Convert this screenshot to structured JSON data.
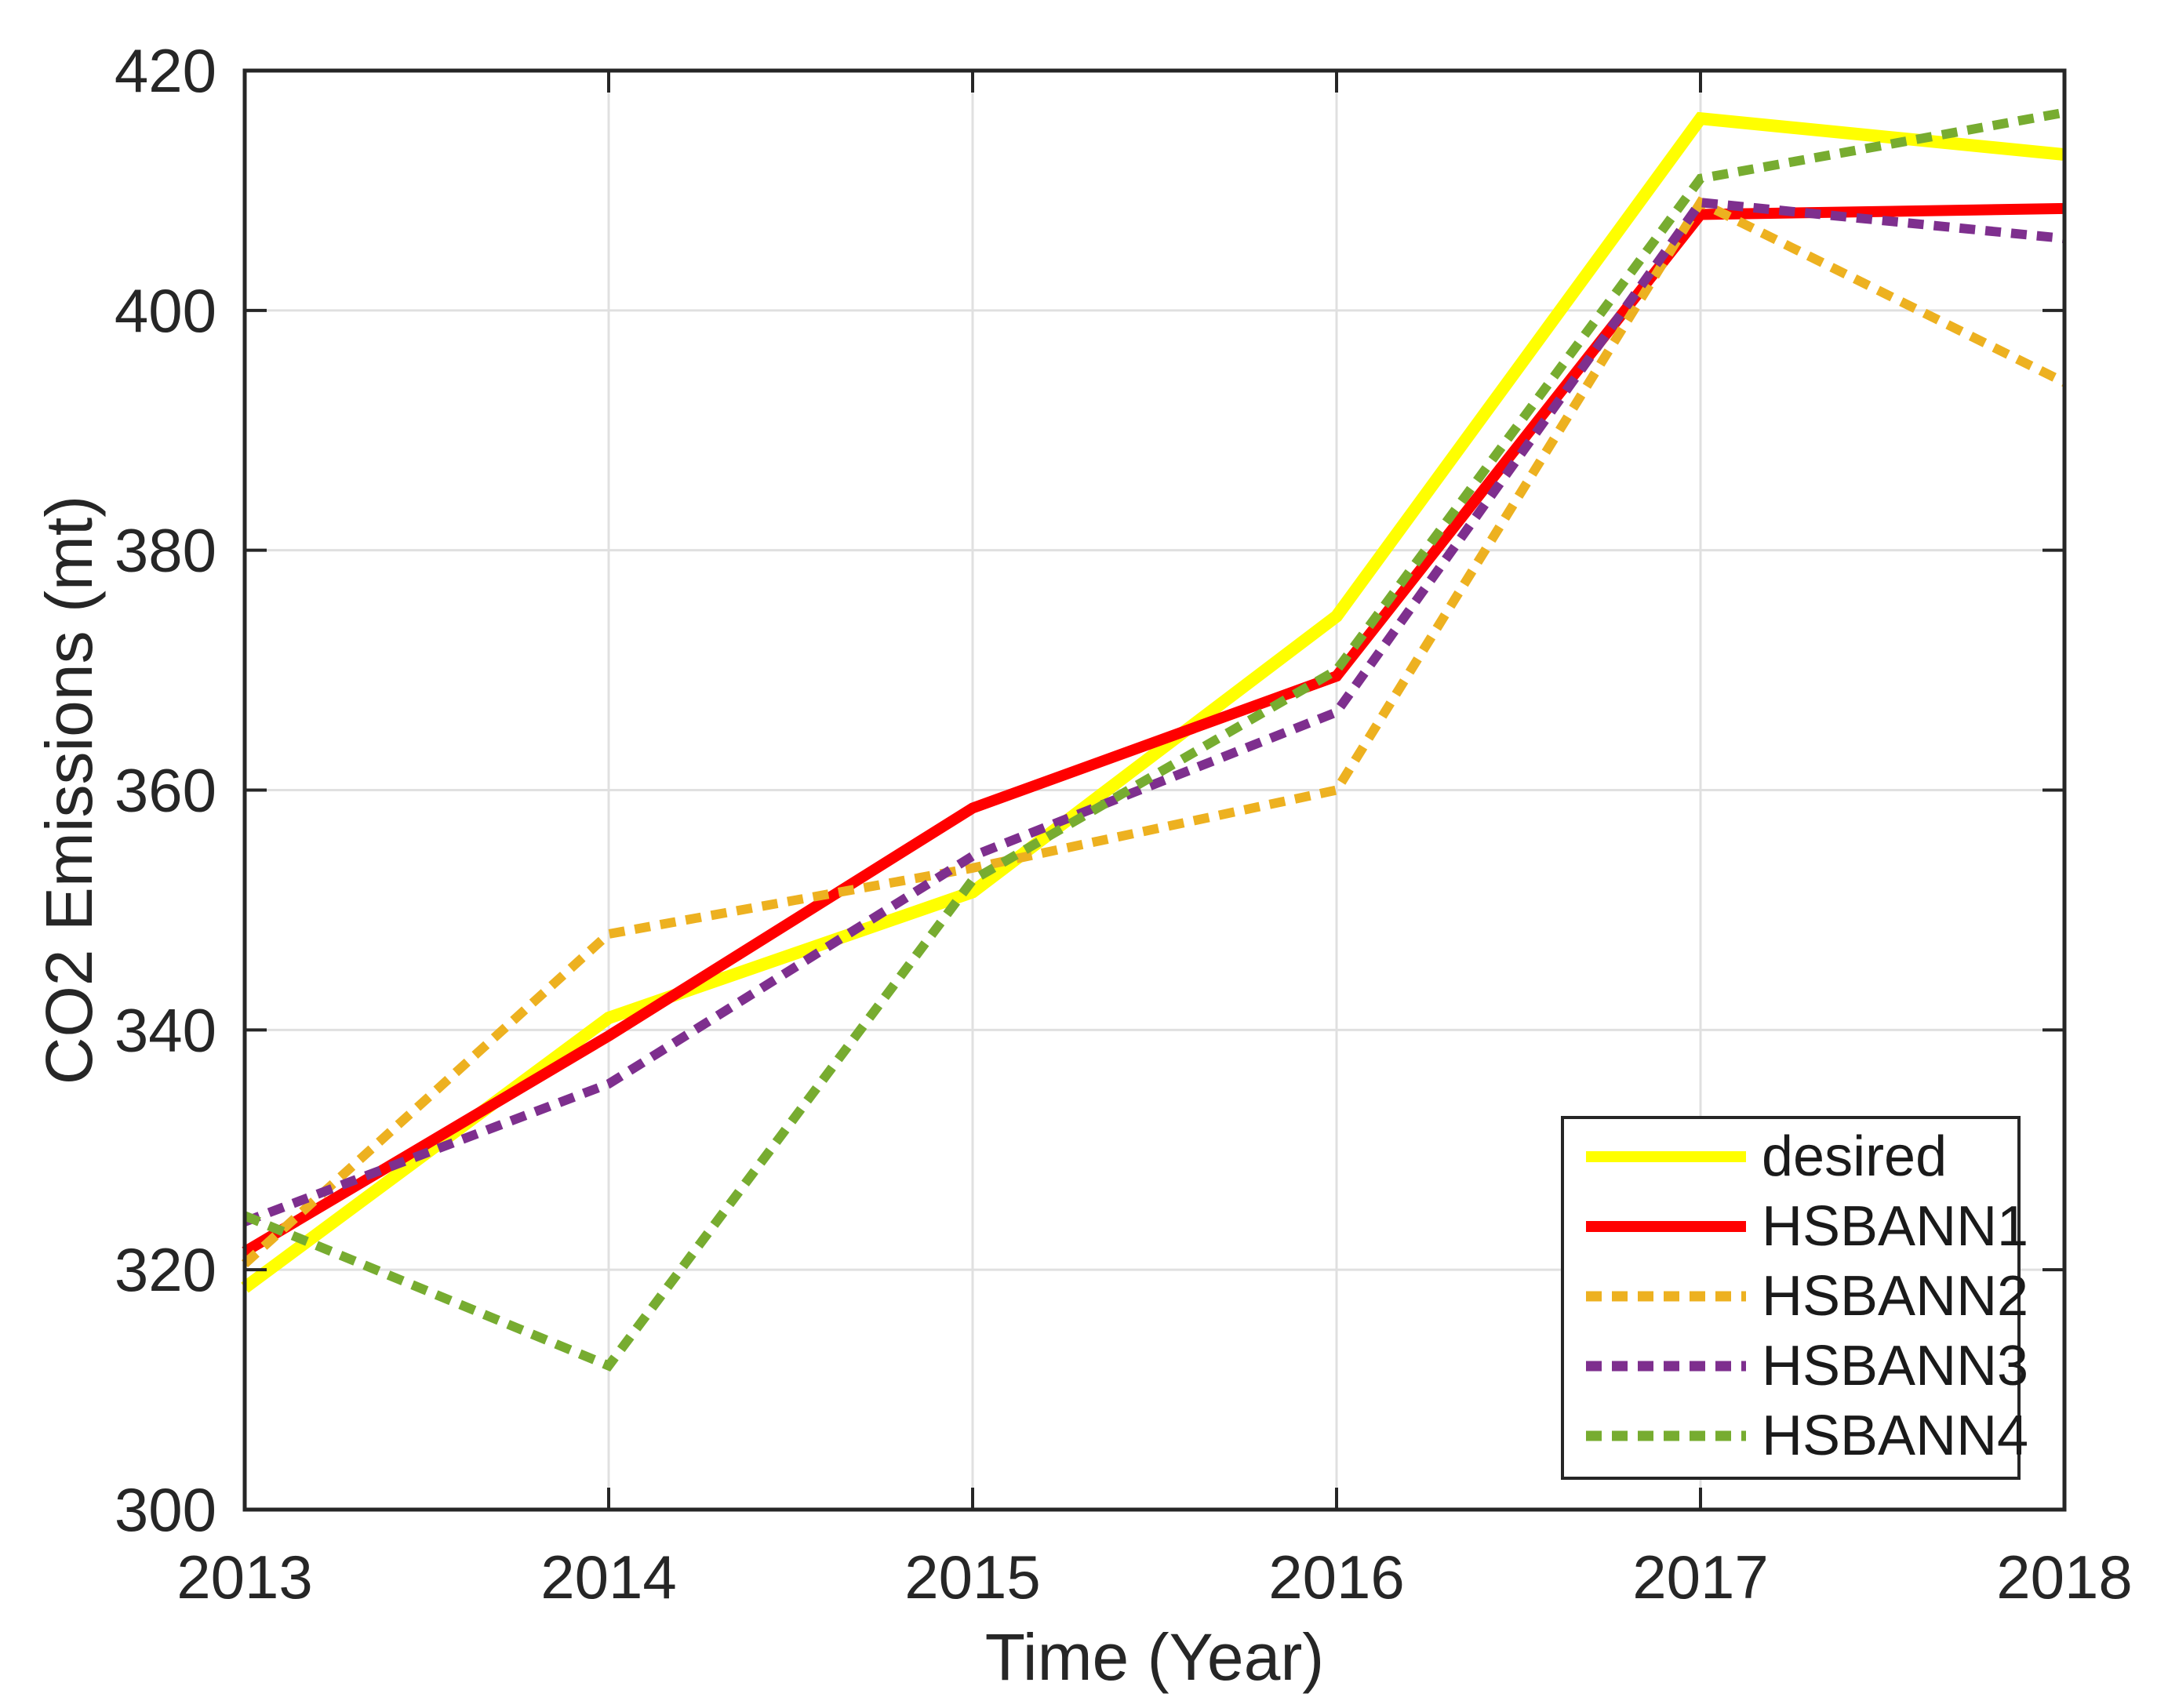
{
  "chart_data": {
    "type": "line",
    "title": "",
    "xlabel": "Time (Year)",
    "ylabel": "CO2 Emissions (mt)",
    "x": [
      2013,
      2014,
      2015,
      2016,
      2017,
      2018
    ],
    "x_ticks": [
      "2013",
      "2014",
      "2015",
      "2016",
      "2017",
      "2018"
    ],
    "y_ticks": [
      "300",
      "320",
      "340",
      "360",
      "380",
      "400",
      "420"
    ],
    "xlim": [
      2013,
      2018
    ],
    "ylim": [
      300,
      420
    ],
    "grid": true,
    "grid_color": "#E0E0E0",
    "axis_color": "#262626",
    "text_color": "#262626",
    "legend": {
      "position": "lower-right",
      "background": "#FFFFFF",
      "border_color": "#262626",
      "text_color": "#1A1A1A"
    },
    "series": [
      {
        "name": "desired",
        "color": "#FFFF00",
        "style": "solid",
        "values": [
          318.5,
          341.0,
          351.5,
          374.5,
          416.0,
          413.0
        ]
      },
      {
        "name": "HSBANN1",
        "color": "#FF0000",
        "style": "solid",
        "values": [
          321.5,
          339.5,
          358.5,
          369.5,
          408.0,
          408.5
        ]
      },
      {
        "name": "HSBANN2",
        "color": "#EDB120",
        "style": "dashed",
        "values": [
          320.5,
          348.0,
          353.5,
          360.0,
          409.0,
          394.0
        ]
      },
      {
        "name": "HSBANN3",
        "color": "#7E2F8E",
        "style": "dashed",
        "values": [
          324.0,
          335.5,
          354.5,
          366.5,
          409.0,
          406.0
        ]
      },
      {
        "name": "HSBANN4",
        "color": "#77AC30",
        "style": "dashed",
        "values": [
          324.5,
          312.0,
          352.5,
          370.0,
          411.0,
          416.5
        ]
      }
    ]
  }
}
